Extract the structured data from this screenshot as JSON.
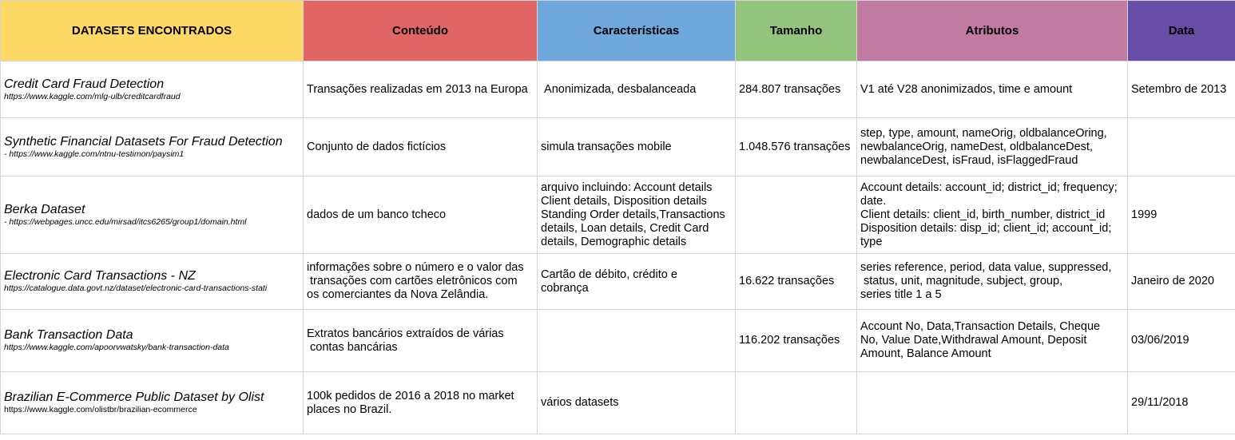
{
  "header": {
    "datasets": "DATASETS ENCONTRADOS",
    "conteudo": "Conteúdo",
    "caracteristicas": "Características",
    "tamanho": "Tamanho",
    "atributos": "Atributos",
    "data": "Data"
  },
  "colors": {
    "datasets": "#ffd966",
    "conteudo": "#e06666",
    "caracteristicas": "#6fa8dc",
    "tamanho": "#93c47d",
    "atributos": "#c27ba0",
    "data": "#674ea7"
  },
  "rows": [
    {
      "name": "Credit Card Fraud Detection",
      "url": "https://www.kaggle.com/mlg-ulb/creditcardfraud",
      "conteudo": "Transações realizadas em 2013 na Europa",
      "caracteristicas": " Anonimizada, desbalanceada",
      "tamanho": "284.807 transações",
      "atributos": "V1 até V28 anonimizados, time e amount",
      "data": "Setembro de 2013"
    },
    {
      "name": "Synthetic Financial Datasets For Fraud Detection",
      "url": " - https://www.kaggle.com/ntnu-testimon/paysim1",
      "conteudo": "Conjunto de dados fictícios",
      "caracteristicas": "simula transações mobile",
      "tamanho": "1.048.576 transações",
      "atributos": "step, type, amount, nameOrig, oldbalanceOring,\nnewbalanceOrig, nameDest, oldbalanceDest,\nnewbalanceDest, isFraud, isFlaggedFraud",
      "data": ""
    },
    {
      "name": "Berka Dataset",
      "url": " - https://webpages.uncc.edu/mirsad/itcs6265/group1/domain.html",
      "conteudo": "dados de um banco tcheco",
      "caracteristicas": "arquivo incluindo: Account details\nClient details, Disposition details\nStanding Order details,Transactions\ndetails, Loan details, Credit Card\ndetails, Demographic details",
      "tamanho": "",
      "atributos": "Account details: account_id; district_id; frequency;\ndate.\nClient details: client_id, birth_number, district_id\nDisposition details: disp_id; client_id; account_id;\ntype",
      "data": "1999"
    },
    {
      "name": "Electronic Card Transactions - NZ",
      "url": "https://catalogue.data.govt.nz/dataset/electronic-card-transactions-stati",
      "conteudo": "informações sobre o número e o valor das\n transações com cartões eletrônicos com\nos comerciantes da Nova Zelândia.",
      "caracteristicas": "Cartão de débito, crédito e\ncobrança",
      "tamanho": "16.622 transações",
      "atributos": "series reference, period, data value, suppressed,\n status, unit, magnitude, subject, group,\nseries title 1 a 5",
      "data": "Janeiro de 2020"
    },
    {
      "name": "Bank Transaction Data",
      "url": "https://www.kaggle.com/apoorvwatsky/bank-transaction-data",
      "conteudo": "Extratos bancários extraídos de várias\n contas bancárias",
      "caracteristicas": "",
      "tamanho": "116.202 transações",
      "atributos": "Account No, Data,Transaction Details, Cheque\nNo, Value Date,Withdrawal Amount, Deposit\nAmount, Balance Amount",
      "data": "03/06/2019"
    },
    {
      "name": "Brazilian E-Commerce Public Dataset by Olist",
      "url": "https://www.kaggle.com/olistbr/brazilian-ecommerce",
      "conteudo": "100k pedidos de 2016 a 2018 no market\nplaces no Brazil.",
      "caracteristicas": "vários datasets",
      "tamanho": "",
      "atributos": "",
      "data": "29/11/2018"
    }
  ]
}
